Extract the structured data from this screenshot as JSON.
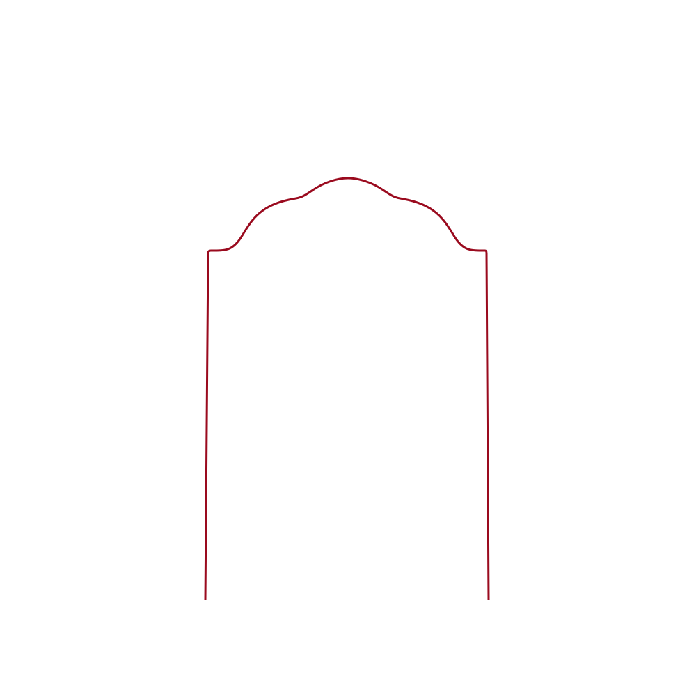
{
  "product": {
    "shape": "arched-wire-frame",
    "colors": {
      "wire": "#9a0a1e",
      "background": "#ffffff"
    }
  }
}
